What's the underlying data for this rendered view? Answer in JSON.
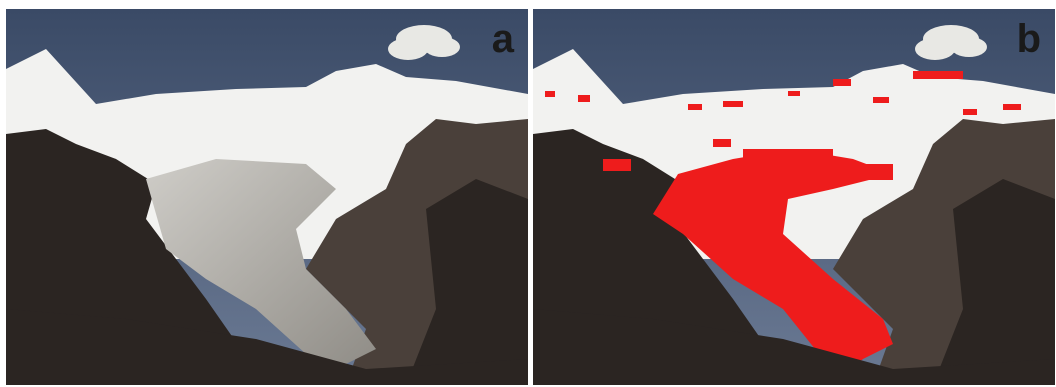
{
  "figure": {
    "panels": [
      {
        "id": "a",
        "label": "a",
        "overlay": false
      },
      {
        "id": "b",
        "label": "b",
        "overlay": true
      }
    ],
    "colors": {
      "sky_top": "#3a4a66",
      "sky_bottom": "#6b7a94",
      "snow": "#f2f2f0",
      "rock_dark": "#2b2522",
      "rock_mid": "#4a403a",
      "glacier_ice": "#a9a7a2",
      "overlay_red": "#ee1c1c",
      "cloud": "#e8e8e4"
    }
  }
}
